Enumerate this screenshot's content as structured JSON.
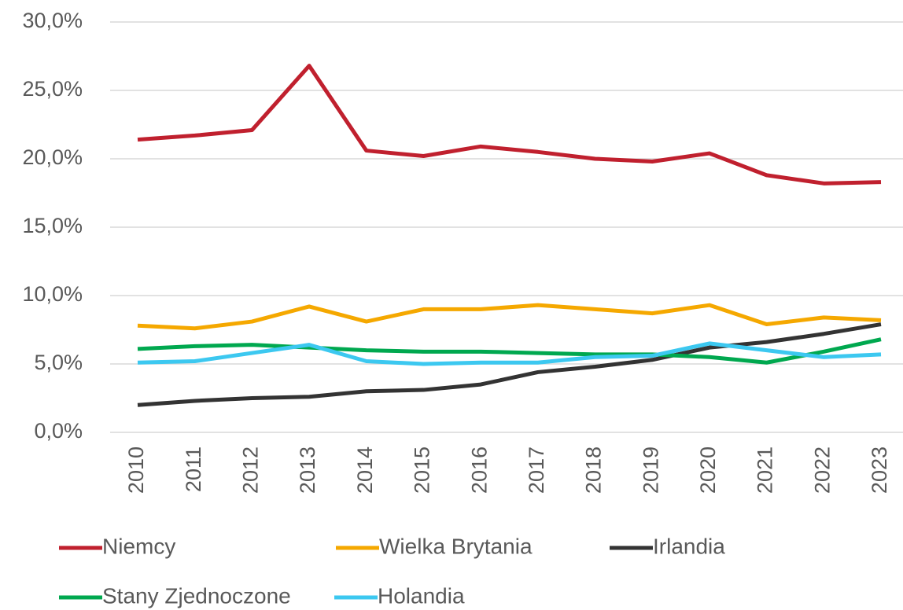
{
  "chart_data": {
    "type": "line",
    "categories": [
      "2010",
      "2011",
      "2012",
      "2013",
      "2014",
      "2015",
      "2016",
      "2017",
      "2018",
      "2019",
      "2020",
      "2021",
      "2022",
      "2023"
    ],
    "series": [
      {
        "name": "Niemcy",
        "color": "#c0202e",
        "values": [
          21.4,
          21.7,
          22.1,
          26.8,
          20.6,
          20.2,
          20.9,
          20.5,
          20.0,
          19.8,
          20.4,
          18.8,
          18.2,
          18.3
        ]
      },
      {
        "name": "Wielka Brytania",
        "color": "#f5a800",
        "values": [
          7.8,
          7.6,
          8.1,
          9.2,
          8.1,
          9.0,
          9.0,
          9.3,
          9.0,
          8.7,
          9.3,
          7.9,
          8.4,
          8.2
        ]
      },
      {
        "name": "Irlandia",
        "color": "#333333",
        "values": [
          2.0,
          2.3,
          2.5,
          2.6,
          3.0,
          3.1,
          3.5,
          4.4,
          4.8,
          5.3,
          6.2,
          6.6,
          7.2,
          7.9
        ]
      },
      {
        "name": "Stany Zjednoczone",
        "color": "#00a84f",
        "values": [
          6.1,
          6.3,
          6.4,
          6.2,
          6.0,
          5.9,
          5.9,
          5.8,
          5.7,
          5.7,
          5.5,
          5.1,
          5.9,
          6.8
        ]
      },
      {
        "name": "Holandia",
        "color": "#3cc8f0",
        "values": [
          5.1,
          5.2,
          5.8,
          6.4,
          5.2,
          5.0,
          5.1,
          5.1,
          5.5,
          5.6,
          6.5,
          6.0,
          5.5,
          5.7
        ]
      }
    ],
    "ylim": [
      0,
      30
    ],
    "yticks": [
      {
        "value": 0,
        "label": "0,0%"
      },
      {
        "value": 5,
        "label": "5,0%"
      },
      {
        "value": 10,
        "label": "10,0%"
      },
      {
        "value": 15,
        "label": "15,0%"
      },
      {
        "value": 20,
        "label": "20,0%"
      },
      {
        "value": 25,
        "label": "25,0%"
      },
      {
        "value": 30,
        "label": "30,0%"
      }
    ],
    "grid": true
  }
}
